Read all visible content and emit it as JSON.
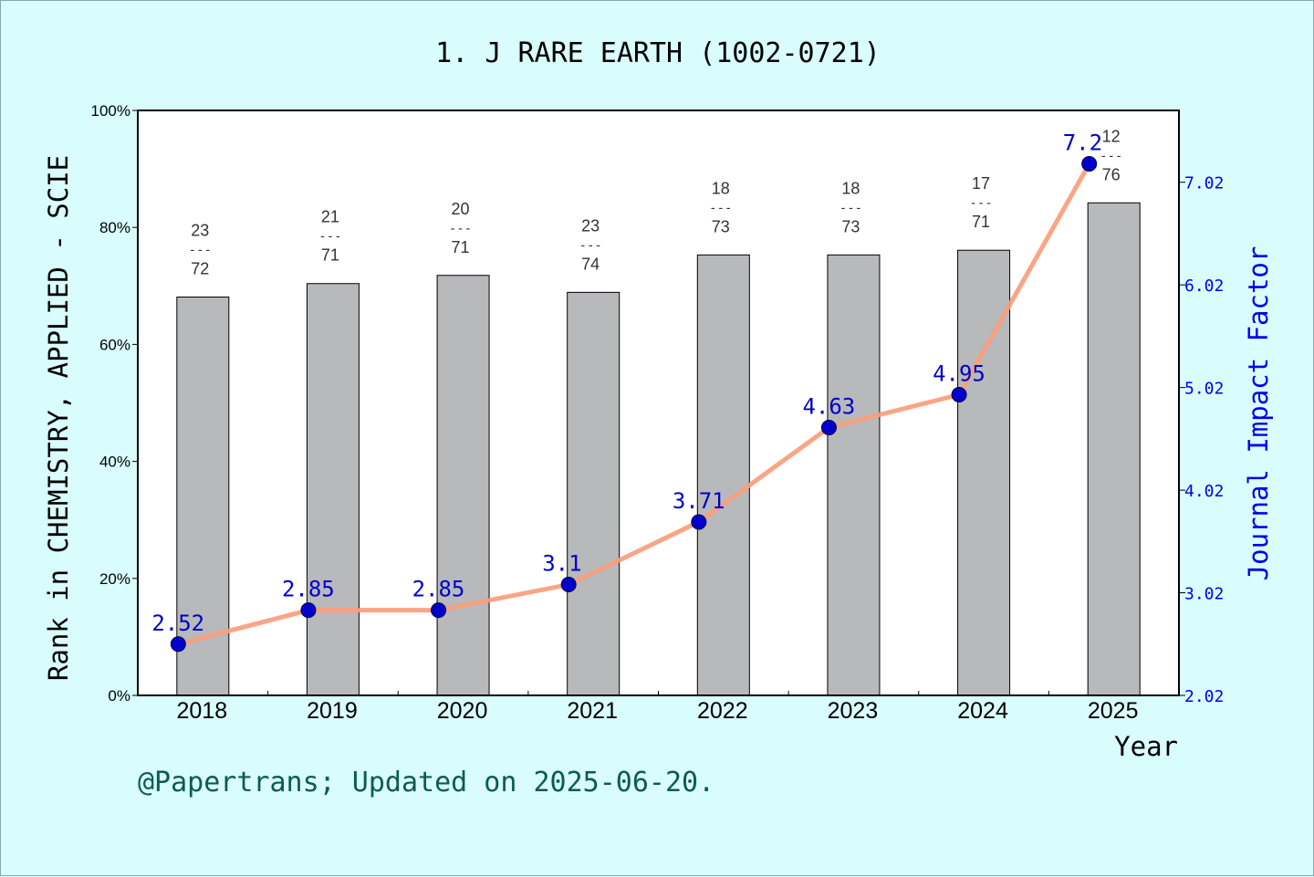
{
  "page": {
    "background": "#d9fdfd",
    "footer": "@Papertrans; Updated on 2025-06-20."
  },
  "chart_data": {
    "type": "bar",
    "title": "1. J RARE EARTH (1002-0721)",
    "xlabel": "Year",
    "ylabel_left": "Rank in CHEMISTRY, APPLIED - SCIE",
    "ylabel_right": "Journal Impact Factor",
    "categories": [
      "2018",
      "2019",
      "2020",
      "2021",
      "2022",
      "2023",
      "2024",
      "2025"
    ],
    "left_axis": {
      "ylim": [
        0,
        100
      ],
      "ticks": [
        "0%",
        "20%",
        "40%",
        "60%",
        "80%",
        "100%"
      ]
    },
    "right_axis": {
      "ylim": [
        2.02,
        7.72
      ],
      "ticks": [
        "2.02",
        "3.02",
        "4.02",
        "5.02",
        "6.02",
        "7.02"
      ]
    },
    "series": [
      {
        "kind": "bar",
        "values": [
          68.1,
          70.4,
          71.8,
          68.9,
          75.3,
          75.3,
          76.1,
          84.2
        ],
        "rank_top": [
          "23",
          "21",
          "20",
          "23",
          "18",
          "18",
          "17",
          "12"
        ],
        "rank_bottom": [
          "72",
          "71",
          "71",
          "74",
          "73",
          "73",
          "71",
          "76"
        ],
        "rank_separator": "---",
        "color": "#b8b9ba"
      },
      {
        "kind": "line",
        "values": [
          2.52,
          2.85,
          2.85,
          3.1,
          3.71,
          4.63,
          4.95,
          7.2
        ],
        "labels": [
          "2.52",
          "2.85",
          "2.85",
          "3.1",
          "3.71",
          "4.63",
          "4.95",
          "7.2"
        ],
        "line_color": "#fa9d7c",
        "marker_color": "#0000cc"
      }
    ],
    "grid": false
  }
}
